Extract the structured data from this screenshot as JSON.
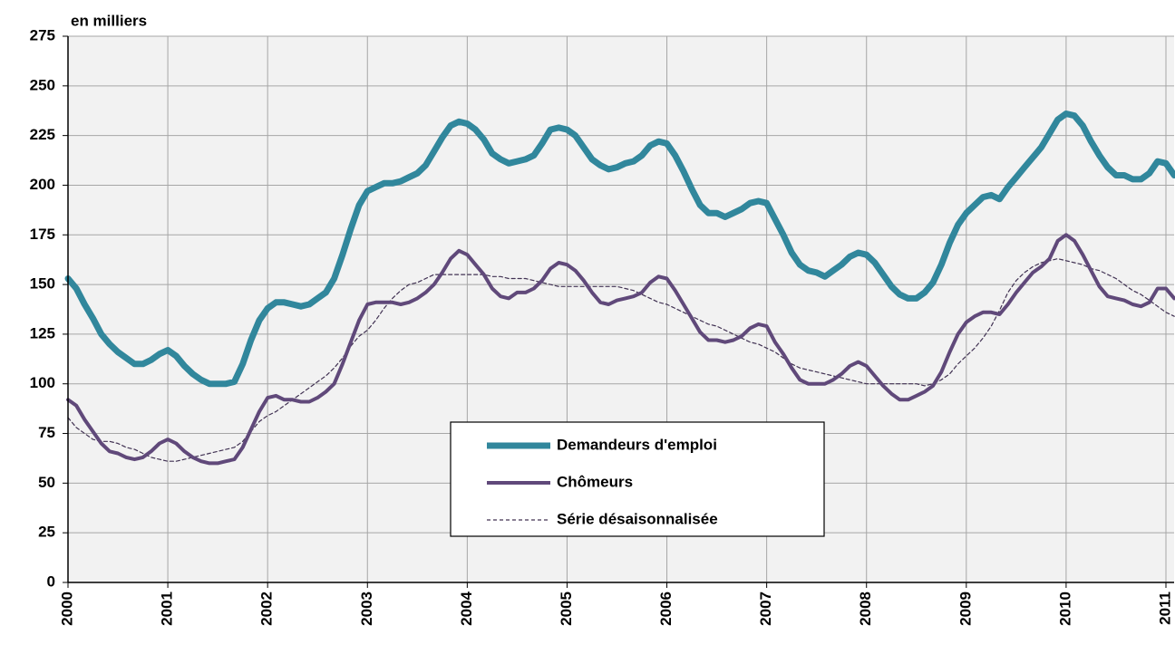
{
  "chart_data": {
    "type": "line",
    "y_label": "en milliers",
    "categories": [
      "2000",
      null,
      null,
      null,
      null,
      null,
      null,
      null,
      null,
      null,
      null,
      null,
      "2001",
      null,
      null,
      null,
      null,
      null,
      null,
      null,
      null,
      null,
      null,
      null,
      "2002",
      null,
      null,
      null,
      null,
      null,
      null,
      null,
      null,
      null,
      null,
      null,
      "2003",
      null,
      null,
      null,
      null,
      null,
      null,
      null,
      null,
      null,
      null,
      null,
      "2004",
      null,
      null,
      null,
      null,
      null,
      null,
      null,
      null,
      null,
      null,
      null,
      "2005",
      null,
      null,
      null,
      null,
      null,
      null,
      null,
      null,
      null,
      null,
      null,
      "2006",
      null,
      null,
      null,
      null,
      null,
      null,
      null,
      null,
      null,
      null,
      null,
      "2007",
      null,
      null,
      null,
      null,
      null,
      null,
      null,
      null,
      null,
      null,
      null,
      "2008",
      null,
      null,
      null,
      null,
      null,
      null,
      null,
      null,
      null,
      null,
      null,
      "2009",
      null,
      null,
      null,
      null,
      null,
      null,
      null,
      null,
      null,
      null,
      null,
      "2010",
      null,
      null,
      null,
      null,
      null,
      null,
      null,
      null,
      null,
      null,
      null,
      "2011",
      null
    ],
    "series": [
      {
        "name": "Demandeurs d'emploi",
        "color": "#31879c",
        "width": 7,
        "dash": false,
        "values": [
          153,
          148,
          140,
          133,
          125,
          120,
          116,
          113,
          110,
          110,
          112,
          115,
          117,
          114,
          109,
          105,
          102,
          100,
          100,
          100,
          101,
          110,
          122,
          132,
          138,
          141,
          141,
          140,
          139,
          140,
          143,
          146,
          153,
          165,
          178,
          190,
          197,
          199,
          201,
          201,
          202,
          204,
          206,
          210,
          217,
          224,
          230,
          232,
          231,
          228,
          223,
          216,
          213,
          211,
          212,
          213,
          215,
          221,
          228,
          229,
          228,
          225,
          219,
          213,
          210,
          208,
          209,
          211,
          212,
          215,
          220,
          222,
          221,
          215,
          207,
          198,
          190,
          186,
          186,
          184,
          186,
          188,
          191,
          192,
          191,
          183,
          175,
          166,
          160,
          157,
          156,
          154,
          157,
          160,
          164,
          166,
          165,
          161,
          155,
          149,
          145,
          143,
          143,
          146,
          151,
          160,
          171,
          180,
          186,
          190,
          194,
          195,
          193,
          199,
          204,
          209,
          214,
          219,
          226,
          233,
          236,
          235,
          230,
          222,
          215,
          209,
          205,
          205,
          203,
          203,
          206,
          212,
          211,
          205
        ]
      },
      {
        "name": "Chômeurs",
        "color": "#60497a",
        "width": 4,
        "dash": false,
        "values": [
          92,
          89,
          82,
          76,
          70,
          66,
          65,
          63,
          62,
          63,
          66,
          70,
          72,
          70,
          66,
          63,
          61,
          60,
          60,
          61,
          62,
          68,
          77,
          86,
          93,
          94,
          92,
          92,
          91,
          91,
          93,
          96,
          100,
          110,
          121,
          132,
          140,
          141,
          141,
          141,
          140,
          141,
          143,
          146,
          150,
          156,
          163,
          167,
          165,
          160,
          155,
          148,
          144,
          143,
          146,
          146,
          148,
          152,
          158,
          161,
          160,
          157,
          152,
          146,
          141,
          140,
          142,
          143,
          144,
          146,
          151,
          154,
          153,
          147,
          140,
          133,
          126,
          122,
          122,
          121,
          122,
          124,
          128,
          130,
          129,
          121,
          115,
          108,
          102,
          100,
          100,
          100,
          102,
          105,
          109,
          111,
          109,
          104,
          99,
          95,
          92,
          92,
          94,
          96,
          99,
          106,
          116,
          125,
          131,
          134,
          136,
          136,
          135,
          140,
          146,
          151,
          156,
          159,
          163,
          172,
          175,
          172,
          165,
          157,
          149,
          144,
          143,
          142,
          140,
          139,
          141,
          148,
          148,
          143
        ]
      },
      {
        "name": "Série désaisonnalisée",
        "color": "#403152",
        "width": 1.2,
        "dash": true,
        "values": [
          83,
          78,
          75,
          72,
          71,
          71,
          70,
          68,
          67,
          65,
          63,
          62,
          61,
          61,
          62,
          63,
          64,
          65,
          66,
          67,
          68,
          71,
          76,
          81,
          84,
          86,
          89,
          92,
          95,
          98,
          101,
          104,
          108,
          113,
          119,
          124,
          127,
          132,
          138,
          143,
          147,
          150,
          151,
          153,
          155,
          155,
          155,
          155,
          155,
          155,
          155,
          154,
          154,
          153,
          153,
          153,
          152,
          151,
          150,
          149,
          149,
          149,
          149,
          149,
          149,
          149,
          149,
          148,
          147,
          145,
          143,
          141,
          140,
          138,
          136,
          134,
          132,
          130,
          129,
          127,
          125,
          123,
          121,
          120,
          118,
          116,
          113,
          110,
          108,
          107,
          106,
          105,
          104,
          103,
          102,
          101,
          100,
          100,
          100,
          100,
          100,
          100,
          100,
          99,
          100,
          102,
          105,
          110,
          114,
          118,
          123,
          129,
          137,
          146,
          152,
          156,
          159,
          161,
          162,
          163,
          162,
          161,
          160,
          158,
          157,
          155,
          153,
          150,
          147,
          145,
          142,
          139,
          136,
          134
        ]
      }
    ],
    "ylim": [
      0,
      275
    ],
    "yticks": [
      0,
      25,
      50,
      75,
      100,
      125,
      150,
      175,
      200,
      225,
      250,
      275
    ],
    "grid": true,
    "legend": "center"
  }
}
